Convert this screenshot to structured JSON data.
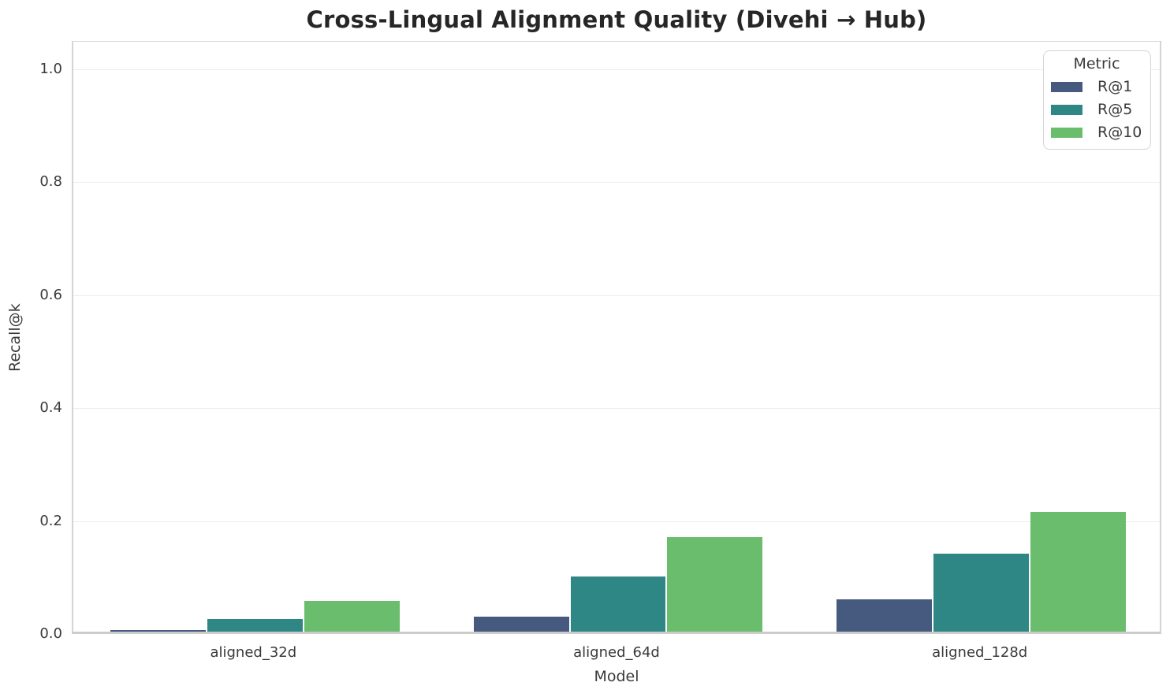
{
  "figure": {
    "title": "Cross-Lingual Alignment Quality (Divehi → Hub)"
  },
  "chart_data": {
    "type": "bar",
    "title": "Cross-Lingual Alignment Quality (Divehi → Hub)",
    "xlabel": "Model",
    "ylabel": "Recall@k",
    "categories": [
      "aligned_32d",
      "aligned_64d",
      "aligned_128d"
    ],
    "series": [
      {
        "name": "R@1",
        "color": "#46597e",
        "values": [
          0.003,
          0.026,
          0.057
        ]
      },
      {
        "name": "R@5",
        "color": "#2e8784",
        "values": [
          0.023,
          0.097,
          0.138
        ]
      },
      {
        "name": "R@10",
        "color": "#69bd6d",
        "values": [
          0.055,
          0.168,
          0.212
        ]
      }
    ],
    "ylim": [
      0,
      1.05
    ],
    "yticks": [
      0.0,
      0.2,
      0.4,
      0.6,
      0.8,
      1.0
    ],
    "ytick_labels": [
      "0.0",
      "0.2",
      "0.4",
      "0.6",
      "0.8",
      "1.0"
    ],
    "legend": {
      "title": "Metric",
      "position": "upper right"
    },
    "grid": true,
    "bar_group_width_fraction": 0.8
  }
}
